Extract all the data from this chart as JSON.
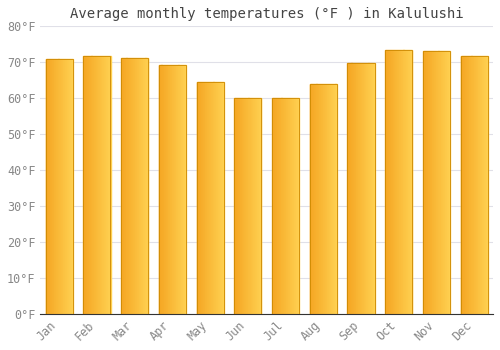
{
  "title": "Average monthly temperatures (°F ) in Kalulushi",
  "months": [
    "Jan",
    "Feb",
    "Mar",
    "Apr",
    "May",
    "Jun",
    "Jul",
    "Aug",
    "Sep",
    "Oct",
    "Nov",
    "Dec"
  ],
  "values": [
    71.0,
    71.6,
    71.2,
    69.1,
    64.4,
    60.1,
    60.1,
    64.0,
    69.8,
    73.4,
    73.2,
    71.6
  ],
  "bar_color_left": "#F5A623",
  "bar_color_right": "#FFD050",
  "bar_border_color": "#CC8800",
  "background_color": "#FFFFFF",
  "grid_color": "#E0E0E8",
  "text_color": "#888888",
  "ylim": [
    0,
    80
  ],
  "ytick_interval": 10,
  "title_fontsize": 10,
  "tick_fontsize": 8.5,
  "bar_width": 0.72
}
